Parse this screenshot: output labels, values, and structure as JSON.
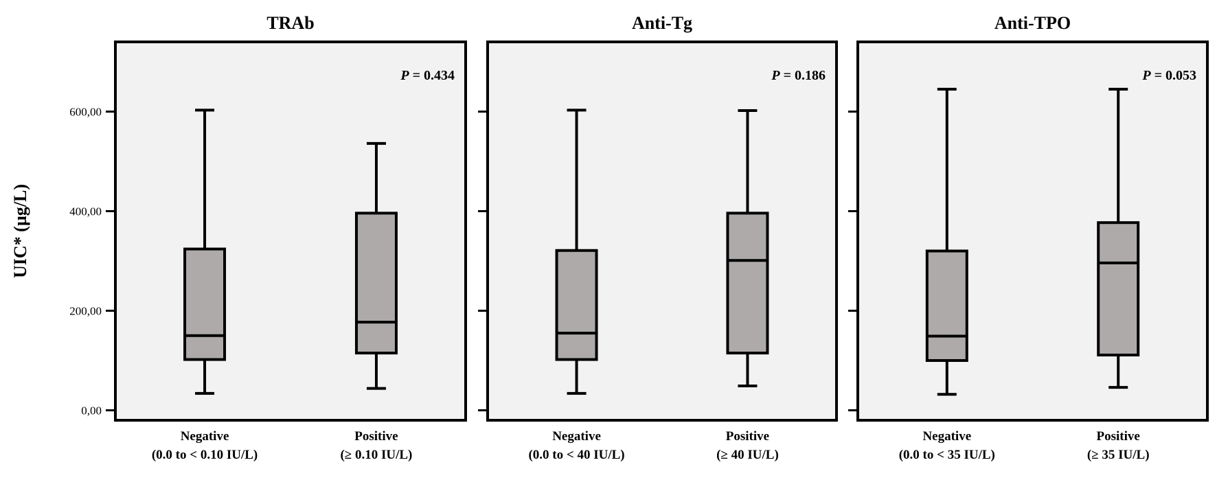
{
  "chart_data": {
    "type": "box",
    "ylabel": "UIC* (µg/L)",
    "ylim": [
      -20,
      740
    ],
    "yticks": [
      {
        "value": 0,
        "label": "0,00"
      },
      {
        "value": 200,
        "label": "200,00"
      },
      {
        "value": 400,
        "label": "400,00"
      },
      {
        "value": 600,
        "label": "600,00"
      }
    ],
    "colors": {
      "box_fill": "#aeaaaa",
      "panel_bg": "#f2f2f2",
      "line": "#000000"
    },
    "panels": [
      {
        "title": "TRAb",
        "p_label": "P",
        "p_value": "= 0.434",
        "groups": [
          {
            "label_line1": "Negative",
            "label_line2": "(0.0 to < 0.10 IU/L)",
            "min": 34,
            "q1": 102,
            "median": 150,
            "q3": 324,
            "max": 603
          },
          {
            "label_line1": "Positive",
            "label_line2": "(≥ 0.10 IU/L)",
            "min": 44,
            "q1": 115,
            "median": 177,
            "q3": 396,
            "max": 536
          }
        ]
      },
      {
        "title": "Anti-Tg",
        "p_label": "P",
        "p_value": "= 0.186",
        "groups": [
          {
            "label_line1": "Negative",
            "label_line2": "(0.0 to < 40 IU/L)",
            "min": 34,
            "q1": 102,
            "median": 155,
            "q3": 321,
            "max": 603
          },
          {
            "label_line1": "Positive",
            "label_line2": "(≥ 40 IU/L)",
            "min": 49,
            "q1": 115,
            "median": 301,
            "q3": 396,
            "max": 602
          }
        ]
      },
      {
        "title": "Anti-TPO",
        "p_label": "P",
        "p_value": "= 0.053",
        "groups": [
          {
            "label_line1": "Negative",
            "label_line2": "(0.0 to < 35 IU/L)",
            "min": 32,
            "q1": 100,
            "median": 149,
            "q3": 320,
            "max": 645
          },
          {
            "label_line1": "Positive",
            "label_line2": "(≥ 35 IU/L)",
            "min": 46,
            "q1": 111,
            "median": 296,
            "q3": 377,
            "max": 645
          }
        ]
      }
    ]
  }
}
